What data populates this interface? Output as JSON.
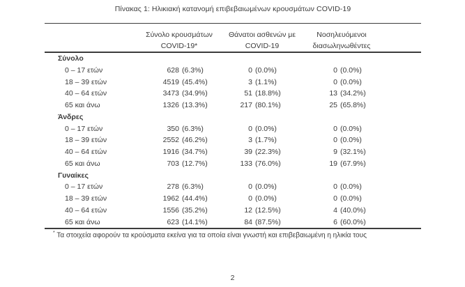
{
  "page": {
    "number": "2"
  },
  "table": {
    "title": "Πίνακας 1: Ηλικιακή κατανομή επιβεβαιωμένων κρουσμάτων COVID-19",
    "headers": {
      "cases_line1": "Σύνολο κρουσμάτων",
      "cases_line2": "COVID-19*",
      "deaths_line1": "Θάνατοι ασθενών με",
      "deaths_line2": "COVID-19",
      "intubated_line1": "Νοσηλευόμενοι",
      "intubated_line2": "διασωληνωθέντες"
    },
    "sections": [
      {
        "label": "Σύνολο",
        "rows": [
          {
            "label": "0 – 17 ετών",
            "cases_n": "628",
            "cases_p": "(6.3%)",
            "deaths_n": "0",
            "deaths_p": "(0.0%)",
            "intubated_n": "0",
            "intubated_p": "(0.0%)"
          },
          {
            "label": "18 – 39 ετών",
            "cases_n": "4519",
            "cases_p": "(45.4%)",
            "deaths_n": "3",
            "deaths_p": "(1.1%)",
            "intubated_n": "0",
            "intubated_p": "(0.0%)"
          },
          {
            "label": "40 – 64 ετών",
            "cases_n": "3473",
            "cases_p": "(34.9%)",
            "deaths_n": "51",
            "deaths_p": "(18.8%)",
            "intubated_n": "13",
            "intubated_p": "(34.2%)"
          },
          {
            "label": "65 και άνω",
            "cases_n": "1326",
            "cases_p": "(13.3%)",
            "deaths_n": "217",
            "deaths_p": "(80.1%)",
            "intubated_n": "25",
            "intubated_p": "(65.8%)"
          }
        ]
      },
      {
        "label": "Άνδρες",
        "rows": [
          {
            "label": "0 – 17 ετών",
            "cases_n": "350",
            "cases_p": "(6.3%)",
            "deaths_n": "0",
            "deaths_p": "(0.0%)",
            "intubated_n": "0",
            "intubated_p": "(0.0%)"
          },
          {
            "label": "18 – 39 ετών",
            "cases_n": "2552",
            "cases_p": "(46.2%)",
            "deaths_n": "3",
            "deaths_p": "(1.7%)",
            "intubated_n": "0",
            "intubated_p": "(0.0%)"
          },
          {
            "label": "40 – 64 ετών",
            "cases_n": "1916",
            "cases_p": "(34.7%)",
            "deaths_n": "39",
            "deaths_p": "(22.3%)",
            "intubated_n": "9",
            "intubated_p": "(32.1%)"
          },
          {
            "label": "65 και άνω",
            "cases_n": "703",
            "cases_p": "(12.7%)",
            "deaths_n": "133",
            "deaths_p": "(76.0%)",
            "intubated_n": "19",
            "intubated_p": "(67.9%)"
          }
        ]
      },
      {
        "label": "Γυναίκες",
        "rows": [
          {
            "label": "0 – 17 ετών",
            "cases_n": "278",
            "cases_p": "(6.3%)",
            "deaths_n": "0",
            "deaths_p": "(0.0%)",
            "intubated_n": "0",
            "intubated_p": "(0.0%)"
          },
          {
            "label": "18 – 39 ετών",
            "cases_n": "1962",
            "cases_p": "(44.4%)",
            "deaths_n": "0",
            "deaths_p": "(0.0%)",
            "intubated_n": "0",
            "intubated_p": "(0.0%)"
          },
          {
            "label": "40 – 64 ετών",
            "cases_n": "1556",
            "cases_p": "(35.2%)",
            "deaths_n": "12",
            "deaths_p": "(12.5%)",
            "intubated_n": "4",
            "intubated_p": "(40.0%)"
          },
          {
            "label": "65 και άνω",
            "cases_n": "623",
            "cases_p": "(14.1%)",
            "deaths_n": "84",
            "deaths_p": "(87.5%)",
            "intubated_n": "6",
            "intubated_p": "(60.0%)"
          }
        ]
      }
    ],
    "footnote_marker": "*",
    "footnote": "Τα στοιχεία αφορούν τα κρούσματα εκείνα για τα οποία είναι γνωστή και επιβεβαιωμένη η ηλικία τους"
  },
  "colors": {
    "text": "#3b3b3b",
    "background": "#ffffff"
  }
}
